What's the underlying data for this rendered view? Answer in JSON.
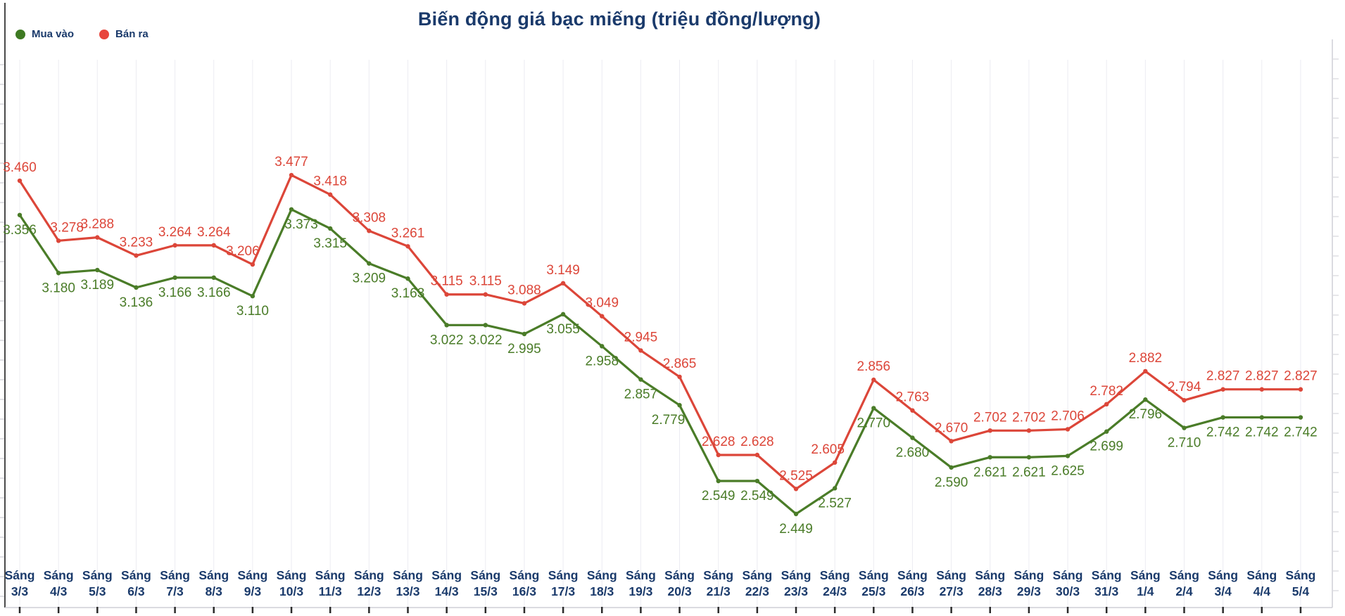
{
  "chart": {
    "title": "Biến động giá bạc miếng (triệu đồng/lượng)"
  },
  "colors": {
    "title_navy": "#1a3a6b",
    "buy_green": "#4a7c28",
    "sell_red": "#dc4639"
  },
  "chart_data": {
    "type": "line",
    "title": "Biến động giá bạc miếng (triệu đồng/lượng)",
    "unit": "triệu đồng/lượng",
    "tick_prefix": "Sáng",
    "categories": [
      "3/3",
      "4/3",
      "5/3",
      "6/3",
      "7/3",
      "8/3",
      "9/3",
      "10/3",
      "11/3",
      "12/3",
      "13/3",
      "14/3",
      "15/3",
      "16/3",
      "17/3",
      "18/3",
      "19/3",
      "20/3",
      "21/3",
      "22/3",
      "23/3",
      "24/3",
      "25/3",
      "26/3",
      "27/3",
      "28/3",
      "29/3",
      "30/3",
      "31/3",
      "1/4",
      "2/4",
      "3/4",
      "4/4",
      "5/4"
    ],
    "series": [
      {
        "key": "buy",
        "name": "Mua vào",
        "color": "#4a7c28",
        "dot_color": "#3e7a22",
        "label_position": "below",
        "values": [
          3.356,
          3.18,
          3.189,
          3.136,
          3.166,
          3.166,
          3.11,
          3.373,
          3.315,
          3.209,
          3.163,
          3.022,
          3.022,
          2.995,
          3.055,
          2.958,
          2.857,
          2.779,
          2.549,
          2.549,
          2.449,
          2.527,
          2.77,
          2.68,
          2.59,
          2.621,
          2.621,
          2.625,
          2.699,
          2.796,
          2.71,
          2.742,
          2.742,
          2.742
        ],
        "labels": [
          "3.356",
          "3.180",
          "3.189",
          "3.136",
          "3.166",
          "3.166",
          "3.110",
          "3.373",
          "3.315",
          "3.209",
          "3.163",
          "3.022",
          "3.022",
          "2.995",
          "3.055",
          "2.958",
          "2.857",
          "2.779",
          "2.549",
          "2.549",
          "2.449",
          "2.527",
          "2.770",
          "2.680",
          "2.590",
          "2.621",
          "2.621",
          "2.625",
          "2.699",
          "2.796",
          "2.710",
          "2.742",
          "2.742",
          "2.742"
        ]
      },
      {
        "key": "sell",
        "name": "Bán ra",
        "color": "#dc4639",
        "dot_color": "#e8453c",
        "label_position": "above",
        "values": [
          3.46,
          3.278,
          3.288,
          3.233,
          3.264,
          3.264,
          3.206,
          3.477,
          3.418,
          3.308,
          3.261,
          3.115,
          3.115,
          3.088,
          3.149,
          3.049,
          2.945,
          2.865,
          2.628,
          2.628,
          2.525,
          2.605,
          2.856,
          2.763,
          2.67,
          2.702,
          2.702,
          2.706,
          2.782,
          2.882,
          2.794,
          2.827,
          2.827,
          2.827
        ],
        "labels": [
          "3.460",
          "3.278",
          "3.288",
          "3.233",
          "3.264",
          "3.264",
          "3.206",
          "3.477",
          "3.418",
          "3.308",
          "3.261",
          "3.115",
          "3.115",
          "3.088",
          "3.149",
          "3.049",
          "2.945",
          "2.865",
          "2.628",
          "2.628",
          "2.525",
          "2.605",
          "2.856",
          "2.763",
          "2.670",
          "2.702",
          "2.702",
          "2.706",
          "2.782",
          "2.882",
          "2.794",
          "2.827",
          "2.827",
          "2.827"
        ]
      }
    ],
    "ylim": [
      2.165,
      3.827
    ],
    "legend_position": "top-left",
    "grid": "vertical-only",
    "legend": [
      "Mua vào",
      "Bán ra"
    ]
  }
}
